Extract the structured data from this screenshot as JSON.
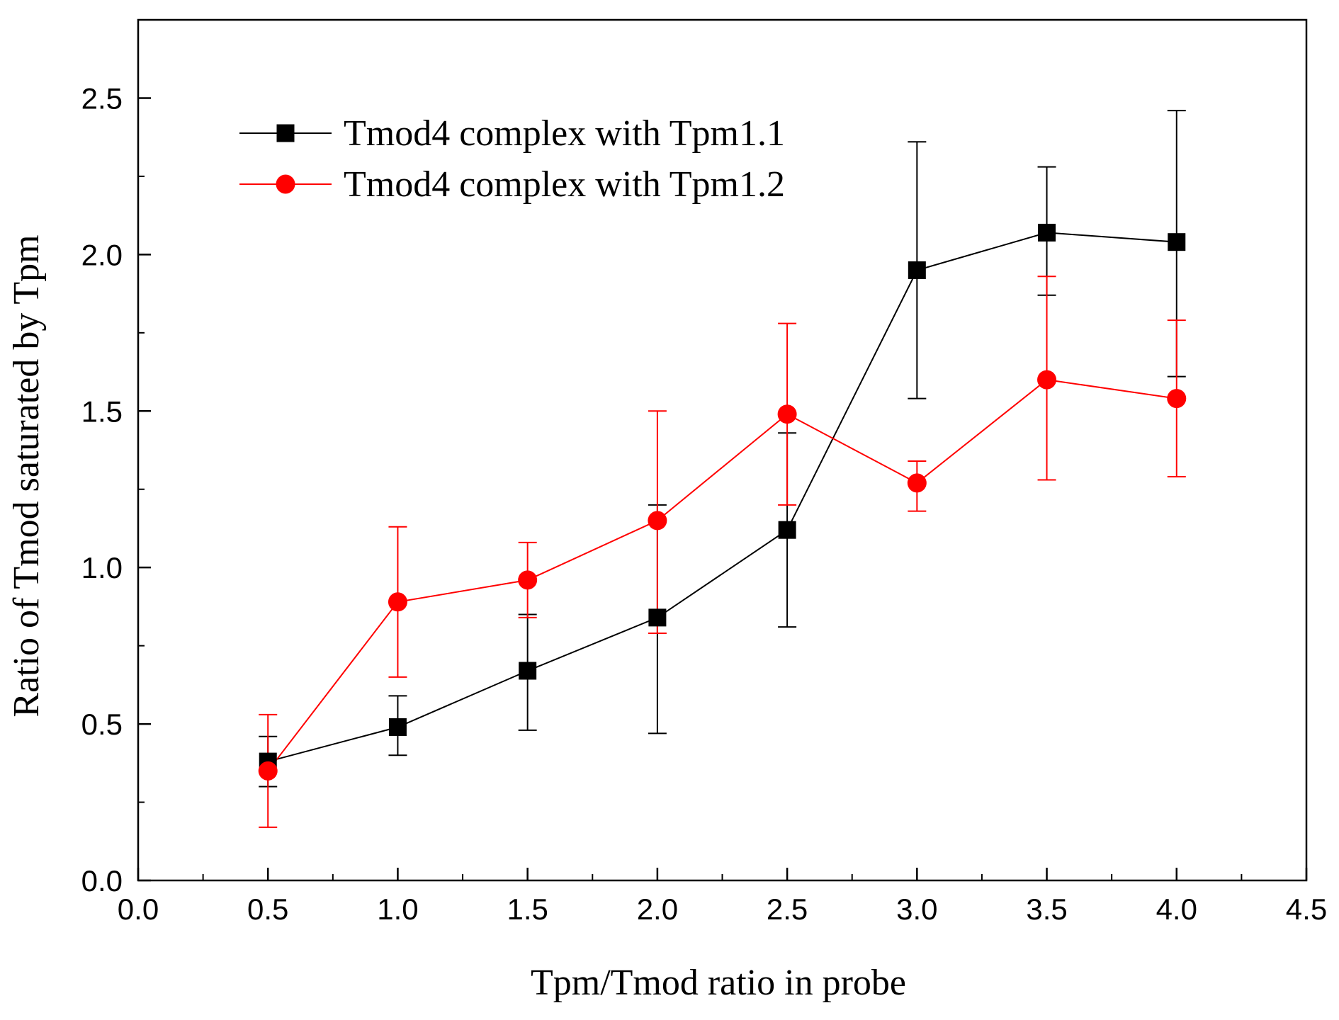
{
  "chart_data": {
    "type": "line",
    "title": "",
    "xlabel": "Tpm/Tmod ratio in probe",
    "ylabel": "Ratio of Tmod saturated by Tpm",
    "xlim": [
      0.0,
      4.5
    ],
    "ylim": [
      0.0,
      2.75
    ],
    "xticks": [
      0.0,
      0.5,
      1.0,
      1.5,
      2.0,
      2.5,
      3.0,
      3.5,
      4.0,
      4.5
    ],
    "xtick_labels": [
      "0.0",
      "0.5",
      "1.0",
      "1.5",
      "2.0",
      "2.5",
      "3.0",
      "3.5",
      "4.0",
      "4.5"
    ],
    "yticks": [
      0.0,
      0.5,
      1.0,
      1.5,
      2.0,
      2.5
    ],
    "ytick_labels": [
      "0.0",
      "0.5",
      "1.0",
      "1.5",
      "2.0",
      "2.5"
    ],
    "grid": false,
    "legend_position": "top-left",
    "x": [
      0.5,
      1.0,
      1.5,
      2.0,
      2.5,
      3.0,
      3.5,
      4.0
    ],
    "series": [
      {
        "name": "Tmod4 complex with Tpm1.1",
        "color": "#000000",
        "marker": "square",
        "values": [
          0.38,
          0.49,
          0.67,
          0.84,
          1.12,
          1.95,
          2.07,
          2.04
        ],
        "error_low": [
          0.3,
          0.4,
          0.48,
          0.47,
          0.81,
          1.54,
          1.87,
          1.61
        ],
        "error_high": [
          0.46,
          0.59,
          0.85,
          1.2,
          1.43,
          2.36,
          2.28,
          2.46
        ]
      },
      {
        "name": "Tmod4 complex with Tpm1.2",
        "color": "#ff0000",
        "marker": "circle",
        "values": [
          0.35,
          0.89,
          0.96,
          1.15,
          1.49,
          1.27,
          1.6,
          1.54
        ],
        "error_low": [
          0.17,
          0.65,
          0.84,
          0.79,
          1.2,
          1.18,
          1.28,
          1.29
        ],
        "error_high": [
          0.53,
          1.13,
          1.08,
          1.5,
          1.78,
          1.34,
          1.93,
          1.79
        ]
      }
    ]
  }
}
